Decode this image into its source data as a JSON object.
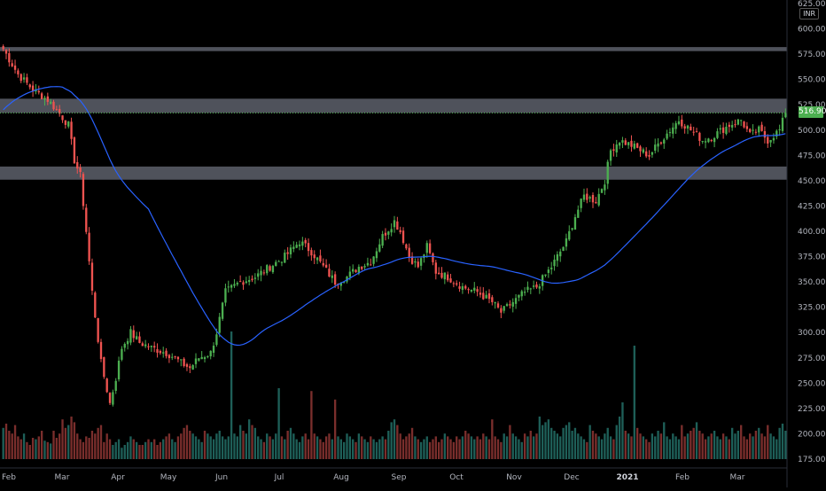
{
  "currency": "INR",
  "last_price_label": "516.90",
  "colors": {
    "up": "#26a69a",
    "down": "#ef5350",
    "up_candle": "#4caf50",
    "ma": "#2962ff",
    "band": "#5d606b",
    "last_price": "#4caf50"
  },
  "chart_data": {
    "type": "candlestick",
    "title": "",
    "y_ticks": [
      "625.00",
      "600.00",
      "575.00",
      "550.00",
      "525.00",
      "500.00",
      "475.00",
      "450.00",
      "425.00",
      "400.00",
      "375.00",
      "350.00",
      "325.00",
      "300.00",
      "275.00",
      "250.00",
      "225.00",
      "200.00",
      "175.00"
    ],
    "ylim": [
      175,
      625
    ],
    "x_ticks": [
      {
        "label": "Feb",
        "bold": false
      },
      {
        "label": "Mar",
        "bold": false
      },
      {
        "label": "Apr",
        "bold": false
      },
      {
        "label": "May",
        "bold": false
      },
      {
        "label": "Jun",
        "bold": false
      },
      {
        "label": "Jul",
        "bold": false
      },
      {
        "label": "Aug",
        "bold": false
      },
      {
        "label": "Sep",
        "bold": false
      },
      {
        "label": "Oct",
        "bold": false
      },
      {
        "label": "Nov",
        "bold": false
      },
      {
        "label": "Dec",
        "bold": false
      },
      {
        "label": "2021",
        "bold": true
      },
      {
        "label": "Feb",
        "bold": false
      },
      {
        "label": "Mar",
        "bold": false
      }
    ],
    "horizontal_bands": [
      {
        "from": 578,
        "to": 582
      },
      {
        "from": 517,
        "to": 531
      },
      {
        "from": 451,
        "to": 464
      }
    ],
    "last_price": 516.9,
    "price_anchors": [
      [
        0,
        580
      ],
      [
        5,
        555
      ],
      [
        10,
        540
      ],
      [
        15,
        530
      ],
      [
        18,
        520
      ],
      [
        22,
        505
      ],
      [
        24,
        470
      ],
      [
        26,
        455
      ],
      [
        28,
        400
      ],
      [
        30,
        340
      ],
      [
        33,
        270
      ],
      [
        36,
        230
      ],
      [
        38,
        255
      ],
      [
        40,
        285
      ],
      [
        43,
        300
      ],
      [
        46,
        290
      ],
      [
        50,
        285
      ],
      [
        55,
        280
      ],
      [
        58,
        275
      ],
      [
        60,
        270
      ],
      [
        63,
        265
      ],
      [
        66,
        275
      ],
      [
        70,
        280
      ],
      [
        72,
        300
      ],
      [
        75,
        340
      ],
      [
        80,
        350
      ],
      [
        85,
        355
      ],
      [
        90,
        365
      ],
      [
        95,
        375
      ],
      [
        100,
        390
      ],
      [
        104,
        380
      ],
      [
        108,
        365
      ],
      [
        112,
        350
      ],
      [
        116,
        355
      ],
      [
        120,
        365
      ],
      [
        124,
        370
      ],
      [
        128,
        395
      ],
      [
        132,
        410
      ],
      [
        134,
        400
      ],
      [
        137,
        375
      ],
      [
        140,
        365
      ],
      [
        143,
        385
      ],
      [
        146,
        360
      ],
      [
        150,
        355
      ],
      [
        155,
        345
      ],
      [
        160,
        340
      ],
      [
        165,
        330
      ],
      [
        168,
        320
      ],
      [
        172,
        330
      ],
      [
        176,
        340
      ],
      [
        180,
        345
      ],
      [
        185,
        365
      ],
      [
        190,
        390
      ],
      [
        193,
        415
      ],
      [
        196,
        435
      ],
      [
        200,
        430
      ],
      [
        203,
        450
      ],
      [
        205,
        480
      ],
      [
        208,
        490
      ],
      [
        212,
        485
      ],
      [
        215,
        480
      ],
      [
        218,
        475
      ],
      [
        222,
        490
      ],
      [
        225,
        500
      ],
      [
        228,
        510
      ],
      [
        232,
        500
      ],
      [
        236,
        490
      ],
      [
        240,
        495
      ],
      [
        245,
        505
      ],
      [
        249,
        510
      ],
      [
        252,
        495
      ],
      [
        255,
        500
      ],
      [
        258,
        490
      ],
      [
        262,
        500
      ],
      [
        264,
        516.9
      ]
    ],
    "volume": {
      "baseline_value": 175,
      "notes": "volume bars drawn behind price; largest spikes near Jul, Jan, Aug",
      "values": [
        22,
        25,
        20,
        18,
        24,
        16,
        14,
        18,
        12,
        10,
        15,
        14,
        16,
        20,
        13,
        12,
        11,
        20,
        15,
        18,
        28,
        22,
        24,
        30,
        26,
        18,
        14,
        12,
        16,
        15,
        20,
        18,
        22,
        24,
        12,
        18,
        14,
        10,
        12,
        14,
        8,
        10,
        12,
        16,
        14,
        12,
        10,
        10,
        12,
        14,
        12,
        14,
        10,
        12,
        14,
        16,
        18,
        14,
        12,
        16,
        18,
        22,
        24,
        20,
        18,
        16,
        14,
        12,
        20,
        18,
        16,
        14,
        18,
        20,
        16,
        14,
        16,
        90,
        18,
        16,
        24,
        20,
        18,
        28,
        24,
        22,
        16,
        14,
        12,
        18,
        16,
        14,
        18,
        50,
        16,
        14,
        20,
        22,
        18,
        14,
        12,
        16,
        18,
        14,
        48,
        18,
        16,
        14,
        12,
        16,
        18,
        14,
        42,
        16,
        14,
        12,
        18,
        16,
        14,
        12,
        18,
        16,
        14,
        12,
        16,
        14,
        12,
        14,
        16,
        14,
        20,
        26,
        28,
        24,
        18,
        14,
        16,
        18,
        22,
        16,
        14,
        12,
        14,
        16,
        12,
        14,
        16,
        12,
        14,
        18,
        16,
        14,
        12,
        16,
        14,
        16,
        20,
        18,
        16,
        14,
        16,
        14,
        18,
        16,
        14,
        28,
        16,
        14,
        12,
        18,
        16,
        24,
        18,
        16,
        14,
        12,
        18,
        16,
        20,
        16,
        18,
        30,
        24,
        26,
        28,
        22,
        20,
        18,
        16,
        22,
        24,
        26,
        20,
        22,
        18,
        16,
        14,
        12,
        24,
        20,
        18,
        16,
        14,
        18,
        22,
        16,
        14,
        24,
        30,
        40,
        20,
        18,
        16,
        80,
        22,
        18,
        16,
        14,
        12,
        18,
        16,
        20,
        18,
        26,
        16,
        14,
        18,
        16,
        14,
        24,
        16,
        18,
        20,
        22,
        26,
        20,
        18,
        14,
        16,
        18,
        20,
        16,
        14,
        18,
        16,
        14,
        22,
        18,
        20,
        24,
        16,
        14,
        18,
        16,
        20,
        22,
        18,
        16,
        24,
        18,
        16,
        14
      ]
    }
  }
}
